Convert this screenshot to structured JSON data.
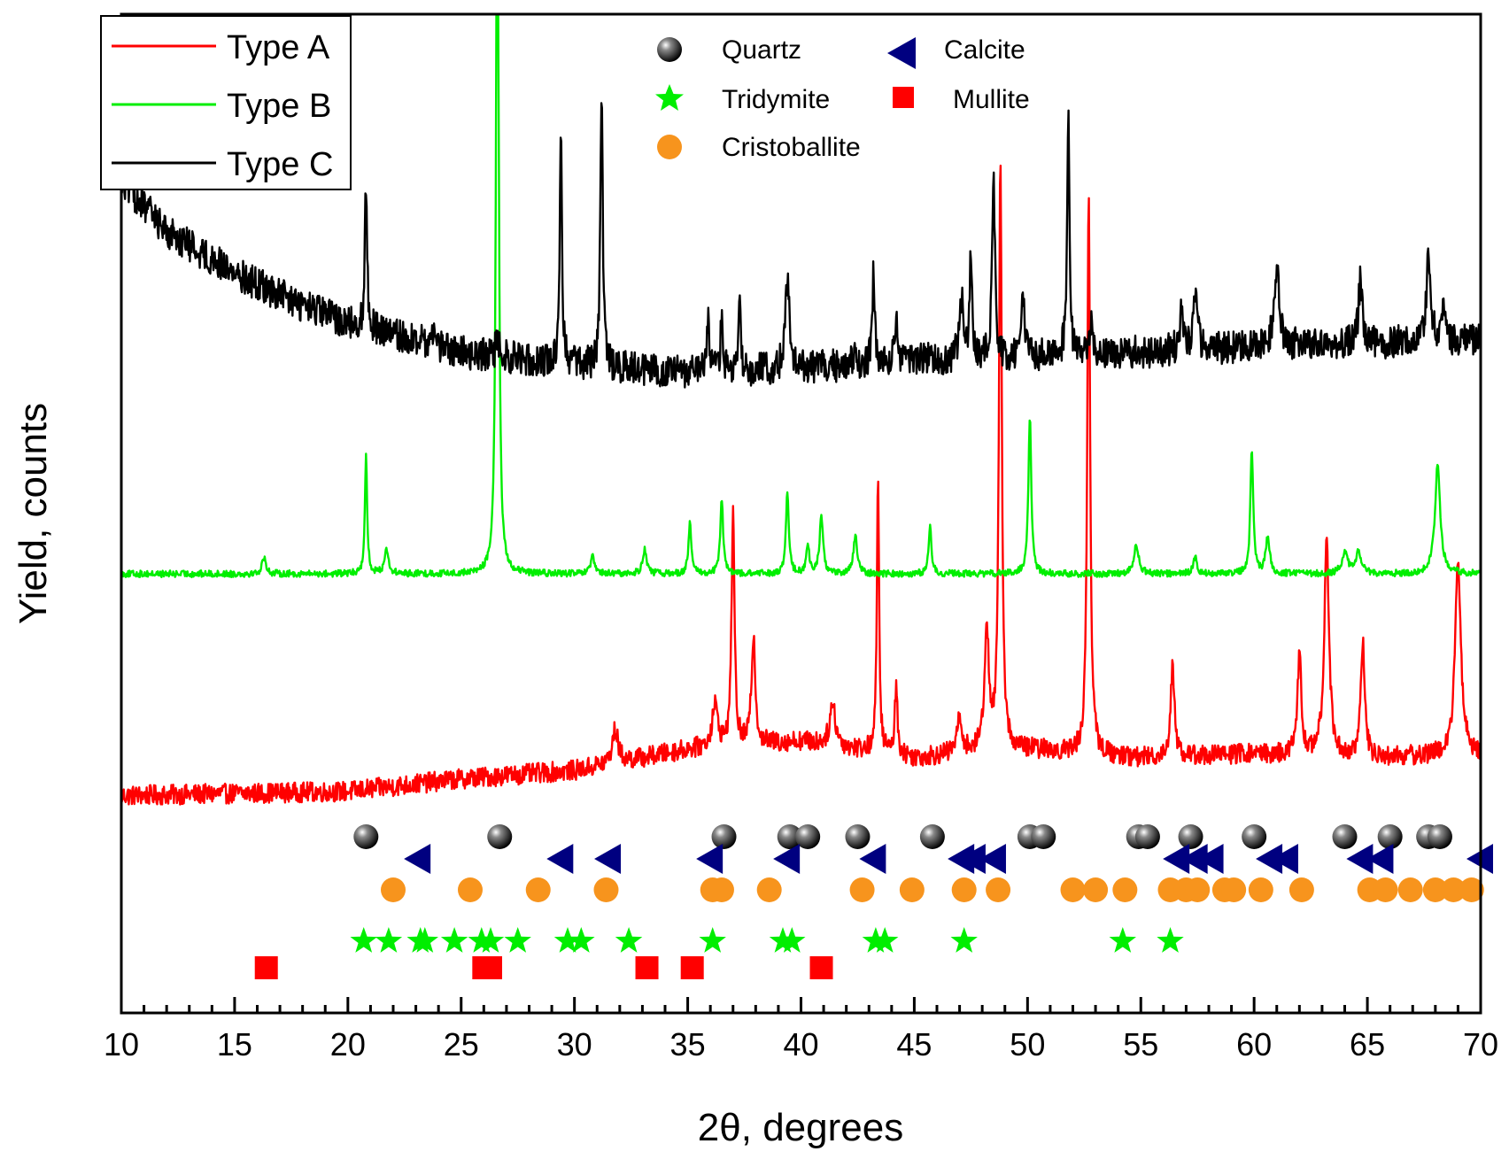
{
  "chart_data": {
    "type": "line",
    "title": "",
    "xlabel": "2θ, degrees",
    "ylabel": "Yield, counts",
    "xlim": [
      10,
      70
    ],
    "xticks": [
      10,
      15,
      20,
      25,
      30,
      35,
      40,
      45,
      50,
      55,
      60,
      65,
      70
    ],
    "grid": false,
    "legend_position": "top-left",
    "series": [
      {
        "name": "Type A",
        "color": "#ff0000",
        "offset": 0.0,
        "baseline": [
          [
            10,
            0.065
          ],
          [
            20,
            0.07
          ],
          [
            25,
            0.085
          ],
          [
            30,
            0.095
          ],
          [
            35,
            0.12
          ],
          [
            40,
            0.13
          ],
          [
            45,
            0.11
          ],
          [
            50,
            0.12
          ],
          [
            55,
            0.11
          ],
          [
            60,
            0.115
          ],
          [
            65,
            0.11
          ],
          [
            70,
            0.115
          ]
        ],
        "noise": 0.012,
        "peaks": [
          [
            31.8,
            0.04,
            0.3
          ],
          [
            36.2,
            0.05,
            0.3
          ],
          [
            37.0,
            0.29,
            0.15
          ],
          [
            37.9,
            0.13,
            0.2
          ],
          [
            41.4,
            0.05,
            0.3
          ],
          [
            43.4,
            0.32,
            0.12
          ],
          [
            44.2,
            0.08,
            0.15
          ],
          [
            47.0,
            0.04,
            0.3
          ],
          [
            48.2,
            0.14,
            0.25
          ],
          [
            48.8,
            0.7,
            0.15
          ],
          [
            52.7,
            0.67,
            0.15
          ],
          [
            56.4,
            0.11,
            0.2
          ],
          [
            62.0,
            0.12,
            0.2
          ],
          [
            63.2,
            0.26,
            0.25
          ],
          [
            64.8,
            0.14,
            0.2
          ],
          [
            69.0,
            0.23,
            0.3
          ]
        ]
      },
      {
        "name": "Type B",
        "color": "#00ee00",
        "offset": 0.33,
        "baseline": [
          [
            10,
            0.0
          ],
          [
            70,
            0.0
          ]
        ],
        "noise": 0.004,
        "peaks": [
          [
            16.3,
            0.02,
            0.2
          ],
          [
            20.8,
            0.14,
            0.12
          ],
          [
            21.7,
            0.03,
            0.2
          ],
          [
            26.6,
            1.0,
            0.13
          ],
          [
            30.8,
            0.02,
            0.2
          ],
          [
            33.1,
            0.03,
            0.2
          ],
          [
            35.1,
            0.06,
            0.15
          ],
          [
            36.5,
            0.09,
            0.15
          ],
          [
            39.4,
            0.1,
            0.15
          ],
          [
            40.3,
            0.035,
            0.15
          ],
          [
            40.9,
            0.07,
            0.18
          ],
          [
            42.4,
            0.045,
            0.2
          ],
          [
            45.7,
            0.055,
            0.15
          ],
          [
            50.1,
            0.19,
            0.15
          ],
          [
            54.8,
            0.035,
            0.25
          ],
          [
            57.4,
            0.02,
            0.2
          ],
          [
            59.9,
            0.15,
            0.15
          ],
          [
            60.6,
            0.045,
            0.2
          ],
          [
            64.0,
            0.025,
            0.3
          ],
          [
            64.6,
            0.025,
            0.3
          ],
          [
            68.1,
            0.13,
            0.28
          ]
        ]
      },
      {
        "name": "Type C",
        "color": "#000000",
        "offset": 0.52,
        "baseline": [
          [
            10,
            0.28
          ],
          [
            12,
            0.22
          ],
          [
            15,
            0.17
          ],
          [
            18,
            0.13
          ],
          [
            20,
            0.11
          ],
          [
            25,
            0.075
          ],
          [
            30,
            0.06
          ],
          [
            35,
            0.05
          ],
          [
            40,
            0.055
          ],
          [
            45,
            0.065
          ],
          [
            50,
            0.07
          ],
          [
            55,
            0.075
          ],
          [
            60,
            0.08
          ],
          [
            65,
            0.085
          ],
          [
            70,
            0.09
          ]
        ],
        "noise": 0.02,
        "peaks": [
          [
            20.8,
            0.17,
            0.12
          ],
          [
            23.8,
            0.03,
            0.1
          ],
          [
            26.6,
            0.03,
            0.12
          ],
          [
            29.4,
            0.27,
            0.12
          ],
          [
            31.2,
            0.34,
            0.12
          ],
          [
            35.9,
            0.06,
            0.12
          ],
          [
            36.5,
            0.07,
            0.12
          ],
          [
            37.3,
            0.08,
            0.12
          ],
          [
            39.4,
            0.11,
            0.22
          ],
          [
            42.4,
            0.03,
            0.12
          ],
          [
            43.2,
            0.11,
            0.12
          ],
          [
            44.2,
            0.05,
            0.12
          ],
          [
            47.1,
            0.08,
            0.2
          ],
          [
            47.5,
            0.13,
            0.12
          ],
          [
            48.5,
            0.22,
            0.14
          ],
          [
            49.8,
            0.08,
            0.15
          ],
          [
            51.8,
            0.29,
            0.12
          ],
          [
            52.8,
            0.04,
            0.15
          ],
          [
            56.8,
            0.05,
            0.2
          ],
          [
            57.4,
            0.07,
            0.2
          ],
          [
            61.0,
            0.1,
            0.28
          ],
          [
            64.7,
            0.08,
            0.2
          ],
          [
            67.7,
            0.1,
            0.22
          ],
          [
            68.3,
            0.04,
            0.2
          ]
        ]
      }
    ],
    "phase_markers": [
      {
        "name": "Quartz",
        "symbol": "sphere",
        "color": "#000000",
        "row": 0,
        "positions": [
          20.8,
          26.7,
          36.6,
          39.5,
          40.3,
          42.5,
          45.8,
          50.1,
          50.7,
          54.9,
          55.3,
          57.2,
          60.0,
          64.0,
          66.0,
          67.7,
          68.2
        ]
      },
      {
        "name": "Calcite",
        "symbol": "triangle-left",
        "color": "#000080",
        "row": 1,
        "positions": [
          23.1,
          29.4,
          31.5,
          36.0,
          39.4,
          43.2,
          47.1,
          47.6,
          48.5,
          56.6,
          57.4,
          58.1,
          60.7,
          61.4,
          64.7,
          65.6,
          70.0
        ]
      },
      {
        "name": "Cristoballite",
        "symbol": "circle",
        "color": "#f7941d",
        "row": 2,
        "positions": [
          22.0,
          25.4,
          28.4,
          31.4,
          36.1,
          36.5,
          38.6,
          42.7,
          44.9,
          47.2,
          48.7,
          52.0,
          53.0,
          54.3,
          56.3,
          57.0,
          57.5,
          58.7,
          59.1,
          60.3,
          62.1,
          65.1,
          65.8,
          66.9,
          68.0,
          68.8,
          69.6
        ]
      },
      {
        "name": "Tridymite",
        "symbol": "star",
        "color": "#00ee00",
        "row": 3,
        "positions": [
          20.7,
          21.8,
          23.2,
          23.4,
          24.7,
          25.9,
          26.3,
          27.5,
          29.7,
          30.3,
          32.4,
          36.1,
          39.2,
          39.6,
          43.3,
          43.7,
          47.2,
          54.2,
          56.3
        ]
      },
      {
        "name": "Mullite",
        "symbol": "square",
        "color": "#ff0000",
        "row": 4,
        "positions": [
          16.4,
          26.0,
          26.3,
          33.2,
          35.2,
          40.9
        ]
      }
    ]
  }
}
